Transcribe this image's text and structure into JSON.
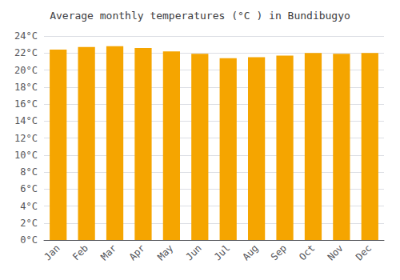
{
  "chart_data": {
    "type": "bar",
    "title": "Average monthly temperatures (°C ) in Bundibugyo",
    "categories": [
      "Jan",
      "Feb",
      "Mar",
      "Apr",
      "May",
      "Jun",
      "Jul",
      "Aug",
      "Sep",
      "Oct",
      "Nov",
      "Dec"
    ],
    "values": [
      22.4,
      22.7,
      22.8,
      22.6,
      22.2,
      21.9,
      21.4,
      21.5,
      21.7,
      22.0,
      21.9,
      22.0
    ],
    "color": "#F5A500",
    "ylim": [
      0,
      24
    ],
    "yticks": [
      {
        "value": 0,
        "label": "0°C"
      },
      {
        "value": 2,
        "label": "2°C"
      },
      {
        "value": 4,
        "label": "4°C"
      },
      {
        "value": 6,
        "label": "6°C"
      },
      {
        "value": 8,
        "label": "8°C"
      },
      {
        "value": 10,
        "label": "10°C"
      },
      {
        "value": 12,
        "label": "12°C"
      },
      {
        "value": 14,
        "label": "14°C"
      },
      {
        "value": 16,
        "label": "16°C"
      },
      {
        "value": 18,
        "label": "18°C"
      },
      {
        "value": 20,
        "label": "20°C"
      },
      {
        "value": 22,
        "label": "22°C"
      },
      {
        "value": 24,
        "label": "24°C"
      }
    ],
    "grid": true
  }
}
